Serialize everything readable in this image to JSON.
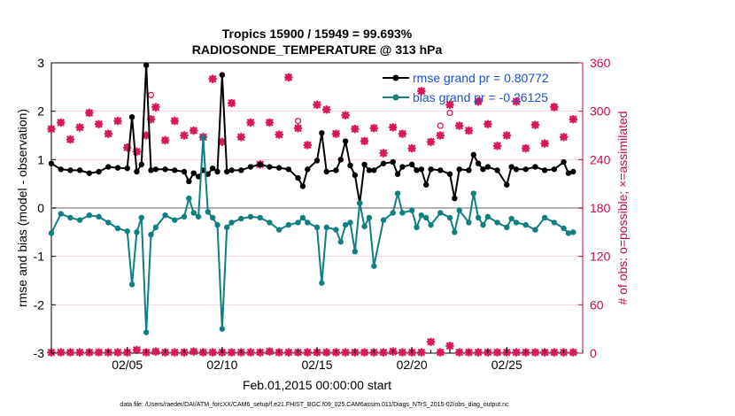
{
  "chart_data": {
    "type": "line",
    "title": "Tropics 15900 / 15949 = 99.693%",
    "subtitle": "RADIOSONDE_TEMPERATURE @ 313 hPa",
    "xlabel": "Feb.01,2015 00:00:00 start",
    "ylabel_left": "rmse and bias (model - observation)",
    "ylabel_right": "# of obs: o=possible; ×=assimilated",
    "footer": "data file: /Users/raeder/DAI/ATM_forcXX/CAM6_setup/f.e21.FHIST_BGC.f09_025.CAM6assim.011/Diags_NTrS_2015-02/obs_diag_output.nc",
    "xlim": [
      1,
      29
    ],
    "ylim_left": [
      -3,
      3
    ],
    "ylim_right": [
      0,
      360
    ],
    "x_tick_values": [
      5,
      10,
      15,
      20,
      25
    ],
    "x_tick_labels": [
      "02/05",
      "02/10",
      "02/15",
      "02/20",
      "02/25"
    ],
    "y_left_tick_values": [
      -3,
      -2,
      -1,
      0,
      1,
      2,
      3
    ],
    "y_left_tick_labels": [
      "-3",
      "-2",
      "-1",
      "0",
      "1",
      "2",
      "3"
    ],
    "y_right_tick_values": [
      0,
      60,
      120,
      180,
      240,
      300,
      360
    ],
    "y_right_tick_labels": [
      "0",
      "60",
      "120",
      "180",
      "240",
      "300",
      "360"
    ],
    "legend": [
      "rmse grand pr = 0.80772",
      "bias grand pr = -0.26125"
    ],
    "colors": {
      "rmse": "#000000",
      "bias": "#0f7f7f",
      "obs": "#d8185a",
      "axis_right": "#c4094f",
      "legend_text": "#1f4fd1",
      "zero_line": "#b3b3b3",
      "grid": "#ffb6d9"
    },
    "series": [
      {
        "name": "rmse",
        "x": [
          1,
          1.5,
          2,
          2.5,
          3,
          3.5,
          4,
          4.5,
          5,
          5.25,
          5.5,
          5.75,
          6,
          6.25,
          6.5,
          7,
          7.5,
          8,
          8.25,
          8.5,
          8.75,
          9,
          9.25,
          9.5,
          9.75,
          10,
          10.25,
          10.5,
          11,
          11.5,
          12,
          12.5,
          13,
          13.5,
          14,
          14.25,
          14.5,
          15,
          15.25,
          15.5,
          16,
          16.25,
          16.5,
          16.75,
          17,
          17.25,
          17.5,
          17.75,
          18,
          18.5,
          19,
          19.25,
          19.5,
          20,
          20.25,
          20.5,
          20.75,
          21,
          21.5,
          22,
          22.25,
          22.5,
          23,
          23.25,
          23.5,
          23.75,
          24,
          24.5,
          25,
          25.25,
          25.5,
          26,
          26.5,
          27,
          27.5,
          28,
          28.25,
          28.5
        ],
        "values": [
          0.92,
          0.8,
          0.78,
          0.78,
          0.72,
          0.75,
          0.85,
          0.83,
          0.82,
          1.88,
          0.75,
          0.9,
          2.95,
          0.78,
          0.8,
          0.8,
          0.78,
          0.75,
          0.55,
          0.72,
          0.65,
          0.78,
          0.7,
          0.82,
          0.75,
          2.75,
          0.75,
          0.78,
          0.78,
          0.85,
          0.9,
          0.85,
          0.83,
          0.8,
          0.62,
          0.45,
          0.8,
          0.98,
          1.55,
          0.75,
          0.78,
          1.0,
          1.38,
          0.88,
          0.68,
          0.1,
          0.9,
          0.78,
          0.78,
          0.92,
          0.95,
          0.7,
          0.85,
          0.9,
          0.78,
          0.8,
          0.48,
          0.8,
          0.78,
          0.7,
          0.2,
          0.8,
          0.78,
          1.1,
          0.92,
          0.8,
          0.85,
          0.78,
          0.48,
          0.85,
          0.8,
          0.8,
          0.85,
          0.78,
          0.8,
          0.95,
          0.72,
          0.75
        ]
      },
      {
        "name": "bias",
        "x": [
          1,
          1.5,
          2,
          2.5,
          3,
          3.5,
          4,
          4.5,
          5,
          5.25,
          5.5,
          5.75,
          6,
          6.25,
          6.5,
          7,
          7.5,
          8,
          8.25,
          8.5,
          8.75,
          9,
          9.25,
          9.5,
          9.75,
          10,
          10.25,
          10.5,
          11,
          11.5,
          12,
          12.5,
          13,
          13.5,
          14,
          14.25,
          14.5,
          15,
          15.25,
          15.5,
          16,
          16.25,
          16.5,
          16.75,
          17,
          17.25,
          17.5,
          17.75,
          18,
          18.5,
          19,
          19.25,
          19.5,
          20,
          20.25,
          20.5,
          20.75,
          21,
          21.5,
          22,
          22.25,
          22.5,
          23,
          23.25,
          23.5,
          23.75,
          24,
          24.5,
          25,
          25.25,
          25.5,
          26,
          26.5,
          27,
          27.5,
          28,
          28.25,
          28.5
        ],
        "values": [
          -0.52,
          -0.12,
          -0.2,
          -0.25,
          -0.15,
          -0.18,
          -0.3,
          -0.42,
          -0.48,
          -1.58,
          -0.5,
          -0.2,
          -2.57,
          -0.55,
          -0.4,
          -0.15,
          -0.25,
          -0.18,
          0.2,
          -0.1,
          -0.18,
          1.45,
          -0.08,
          -0.2,
          -0.35,
          -2.5,
          -0.4,
          -0.3,
          -0.22,
          -0.18,
          -0.2,
          -0.3,
          -0.45,
          -0.35,
          -0.3,
          -0.2,
          -0.3,
          -0.4,
          -1.55,
          -0.4,
          -0.45,
          -0.7,
          -0.35,
          -0.3,
          -0.9,
          0.1,
          -0.38,
          -0.2,
          -1.2,
          -0.25,
          -0.1,
          0.3,
          -0.1,
          -0.05,
          -0.4,
          -0.15,
          -0.2,
          -0.35,
          -0.1,
          -0.2,
          -0.5,
          -0.05,
          -0.3,
          0.3,
          -0.2,
          -0.35,
          -0.18,
          -0.3,
          -0.4,
          -0.22,
          -0.3,
          -0.35,
          -0.45,
          -0.2,
          -0.3,
          -0.42,
          -0.52,
          -0.5
        ]
      }
    ],
    "obs_possible": {
      "x": [
        1,
        1.5,
        2,
        2.5,
        3,
        3.5,
        4,
        4.5,
        5,
        5.5,
        6,
        6.25,
        6.5,
        7,
        7.5,
        8,
        8.5,
        9,
        9.5,
        10,
        10.5,
        11,
        11.5,
        12,
        12.5,
        13,
        13.5,
        14,
        14.5,
        15,
        15.5,
        16,
        16.5,
        17,
        17.5,
        18,
        18.5,
        19,
        19.5,
        20,
        20.5,
        21,
        21.5,
        22,
        22.5,
        23,
        23.5,
        24,
        24.5,
        25,
        25.5,
        26,
        26.5,
        27,
        27.5,
        28,
        28.5
      ],
      "values": [
        278,
        286,
        265,
        280,
        298,
        284,
        272,
        288,
        255,
        250,
        270,
        290,
        305,
        264,
        288,
        270,
        276,
        268,
        340,
        262,
        310,
        268,
        286,
        234,
        286,
        271,
        342,
        279,
        258,
        308,
        302,
        272,
        295,
        278,
        263,
        279,
        248,
        280,
        272,
        254,
        325,
        262,
        270,
        308,
        282,
        276,
        312,
        284,
        257,
        270,
        312,
        254,
        283,
        260,
        305,
        268,
        290
      ],
      "x_open_only": [
        6.25,
        14,
        21.5,
        22,
        27.5
      ],
      "values_open_only": [
        320,
        288,
        282,
        298,
        306
      ]
    },
    "obs_assimilated": {
      "x": [
        1,
        1.5,
        2,
        2.5,
        3,
        3.5,
        4,
        4.5,
        5,
        5.5,
        6,
        6.5,
        7,
        7.5,
        8,
        8.5,
        9,
        9.5,
        10,
        10.5,
        11,
        11.5,
        12,
        12.5,
        13,
        13.5,
        14,
        14.5,
        15,
        15.5,
        16,
        16.5,
        17,
        17.5,
        18,
        18.5,
        19,
        19.5,
        20,
        20.5,
        21,
        21.5,
        22,
        22.5,
        23,
        23.5,
        24,
        24.5,
        25,
        25.5,
        26,
        26.5,
        27,
        27.5,
        28,
        28.5
      ],
      "values": [
        1,
        1,
        1,
        1,
        1,
        1,
        1,
        1,
        1,
        4,
        1,
        2,
        1,
        1,
        1,
        2,
        1,
        1,
        1,
        1,
        1,
        1,
        1,
        2,
        1,
        1,
        1,
        1,
        1,
        1,
        1,
        1,
        1,
        1,
        1,
        1,
        2,
        1,
        1,
        1,
        14,
        1,
        9,
        1,
        1,
        1,
        1,
        1,
        1,
        1,
        1,
        1,
        1,
        1,
        1,
        1
      ]
    }
  }
}
